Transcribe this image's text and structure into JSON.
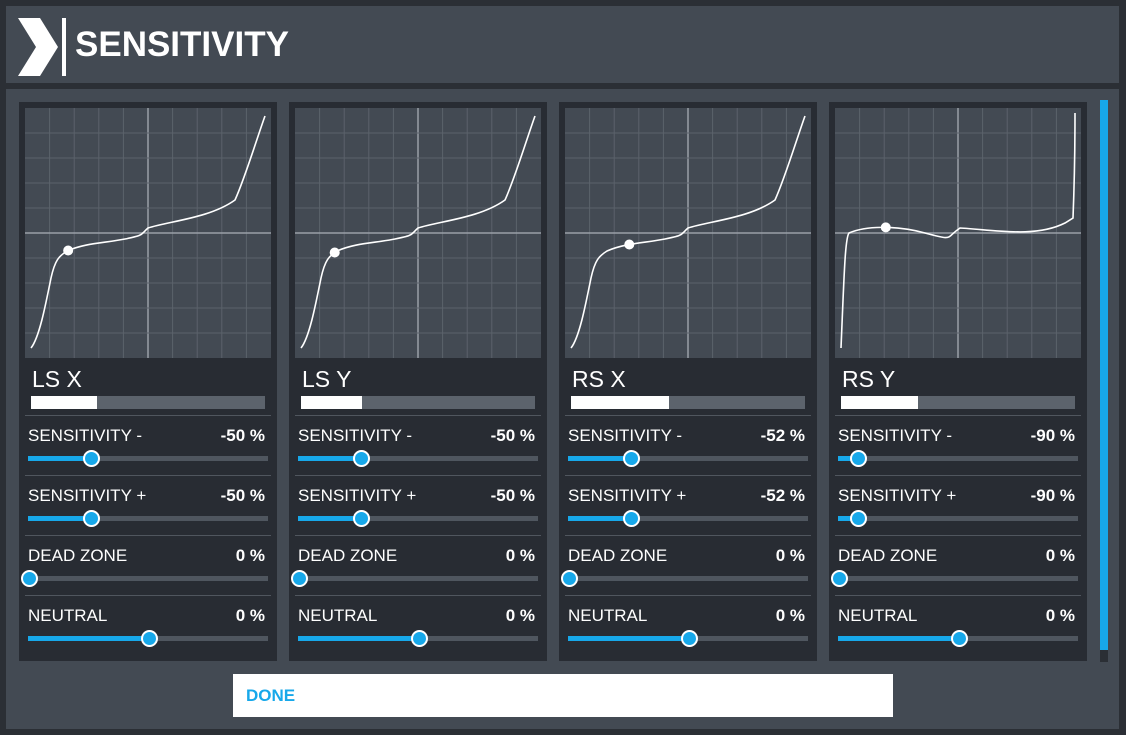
{
  "header": {
    "title": "SENSITIVITY"
  },
  "colors": {
    "accent": "#17a8ea",
    "panel": "#282c33",
    "background": "#434a53"
  },
  "panels": [
    {
      "axis": "LS X",
      "input_level": 0.28,
      "curve_shape": "s-curve",
      "settings": [
        {
          "label": "SENSITIVITY -",
          "value": "-50 %",
          "fraction": 0.26
        },
        {
          "label": "SENSITIVITY +",
          "value": "-50 %",
          "fraction": 0.26
        },
        {
          "label": "DEAD ZONE",
          "value": "0 %",
          "fraction": 0.0
        },
        {
          "label": "NEUTRAL",
          "value": "0 %",
          "fraction": 0.5
        }
      ]
    },
    {
      "axis": "LS Y",
      "input_level": 0.26,
      "curve_shape": "s-curve",
      "settings": [
        {
          "label": "SENSITIVITY -",
          "value": "-50 %",
          "fraction": 0.26
        },
        {
          "label": "SENSITIVITY +",
          "value": "-50 %",
          "fraction": 0.26
        },
        {
          "label": "DEAD ZONE",
          "value": "0 %",
          "fraction": 0.0
        },
        {
          "label": "NEUTRAL",
          "value": "0 %",
          "fraction": 0.5
        }
      ]
    },
    {
      "axis": "RS X",
      "input_level": 0.42,
      "curve_shape": "s-curve",
      "settings": [
        {
          "label": "SENSITIVITY -",
          "value": "-52 %",
          "fraction": 0.26
        },
        {
          "label": "SENSITIVITY +",
          "value": "-52 %",
          "fraction": 0.26
        },
        {
          "label": "DEAD ZONE",
          "value": "0 %",
          "fraction": 0.0
        },
        {
          "label": "NEUTRAL",
          "value": "0 %",
          "fraction": 0.5
        }
      ]
    },
    {
      "axis": "RS Y",
      "input_level": 0.33,
      "curve_shape": "flat",
      "settings": [
        {
          "label": "SENSITIVITY -",
          "value": "-90 %",
          "fraction": 0.08
        },
        {
          "label": "SENSITIVITY +",
          "value": "-90 %",
          "fraction": 0.08
        },
        {
          "label": "DEAD ZONE",
          "value": "0 %",
          "fraction": 0.0
        },
        {
          "label": "NEUTRAL",
          "value": "0 %",
          "fraction": 0.5
        }
      ]
    }
  ],
  "footer": {
    "done_label": "DONE"
  }
}
